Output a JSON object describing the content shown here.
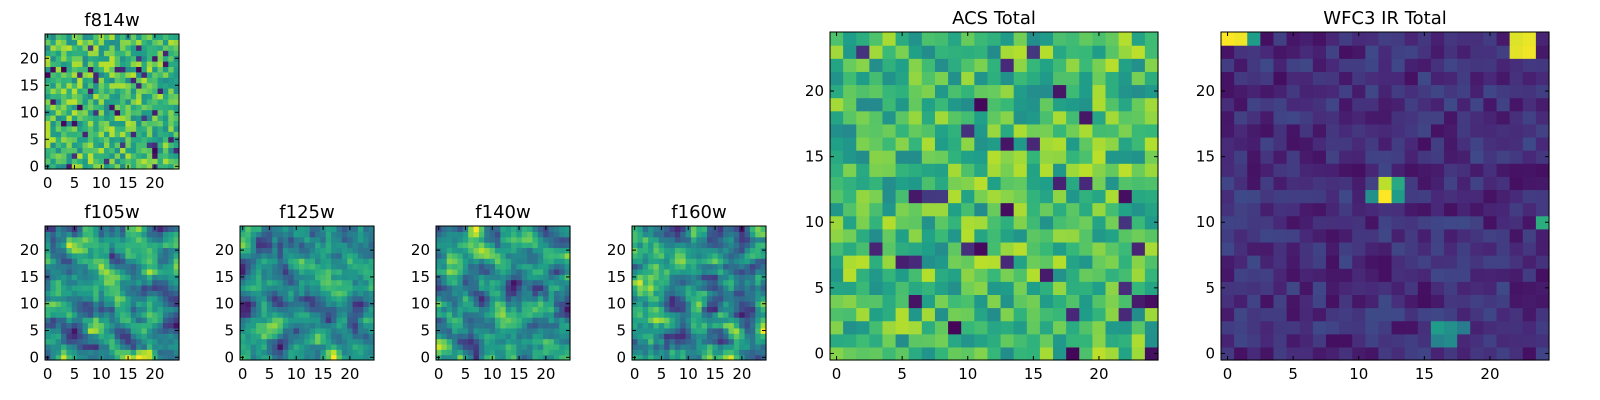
{
  "chart_data": [
    {
      "id": "f814w",
      "type": "heatmap",
      "title": "f814w",
      "xlabel": "",
      "ylabel": "",
      "grid_size": 25,
      "xlim": [
        -0.5,
        24.5
      ],
      "ylim": [
        -0.5,
        24.5
      ],
      "xticks": [
        0,
        5,
        10,
        15,
        20
      ],
      "yticks": [
        0,
        5,
        10,
        15,
        20
      ],
      "colormap": "viridis",
      "value_range": [
        0,
        1
      ],
      "pattern": "noisy",
      "seed": 814,
      "peaks": []
    },
    {
      "id": "f105w",
      "type": "heatmap",
      "title": "f105w",
      "xlabel": "",
      "ylabel": "",
      "grid_size": 25,
      "xlim": [
        -0.5,
        24.5
      ],
      "ylim": [
        -0.5,
        24.5
      ],
      "xticks": [
        0,
        5,
        10,
        15,
        20
      ],
      "yticks": [
        0,
        5,
        10,
        15,
        20
      ],
      "colormap": "viridis",
      "value_range": [
        0,
        1
      ],
      "pattern": "smooth",
      "seed": 105,
      "peaks": []
    },
    {
      "id": "f125w",
      "type": "heatmap",
      "title": "f125w",
      "xlabel": "",
      "ylabel": "",
      "grid_size": 25,
      "xlim": [
        -0.5,
        24.5
      ],
      "ylim": [
        -0.5,
        24.5
      ],
      "xticks": [
        0,
        5,
        10,
        15,
        20
      ],
      "yticks": [
        0,
        5,
        10,
        15,
        20
      ],
      "colormap": "viridis",
      "value_range": [
        0,
        1
      ],
      "pattern": "smooth",
      "seed": 125,
      "peaks": []
    },
    {
      "id": "f140w",
      "type": "heatmap",
      "title": "f140w",
      "xlabel": "",
      "ylabel": "",
      "grid_size": 25,
      "xlim": [
        -0.5,
        24.5
      ],
      "ylim": [
        -0.5,
        24.5
      ],
      "xticks": [
        0,
        5,
        10,
        15,
        20
      ],
      "yticks": [
        0,
        5,
        10,
        15,
        20
      ],
      "colormap": "viridis",
      "value_range": [
        0,
        1
      ],
      "pattern": "smooth",
      "seed": 140,
      "peaks": []
    },
    {
      "id": "f160w",
      "type": "heatmap",
      "title": "f160w",
      "xlabel": "",
      "ylabel": "",
      "grid_size": 25,
      "xlim": [
        -0.5,
        24.5
      ],
      "ylim": [
        -0.5,
        24.5
      ],
      "xticks": [
        0,
        5,
        10,
        15,
        20
      ],
      "yticks": [
        0,
        5,
        10,
        15,
        20
      ],
      "colormap": "viridis",
      "value_range": [
        0,
        1
      ],
      "pattern": "smooth",
      "seed": 160,
      "peaks": []
    },
    {
      "id": "acs-total",
      "type": "heatmap",
      "title": "ACS Total",
      "xlabel": "",
      "ylabel": "",
      "grid_size": 25,
      "xlim": [
        -0.5,
        24.5
      ],
      "ylim": [
        -0.5,
        24.5
      ],
      "xticks": [
        0,
        5,
        10,
        15,
        20
      ],
      "yticks": [
        0,
        5,
        10,
        15,
        20
      ],
      "colormap": "viridis",
      "value_range": [
        0,
        1
      ],
      "pattern": "noisy",
      "seed": 2024,
      "peaks": []
    },
    {
      "id": "wfc3-ir-total",
      "type": "heatmap",
      "title": "WFC3 IR Total",
      "xlabel": "",
      "ylabel": "",
      "grid_size": 25,
      "xlim": [
        -0.5,
        24.5
      ],
      "ylim": [
        -0.5,
        24.5
      ],
      "xticks": [
        0,
        5,
        10,
        15,
        20
      ],
      "yticks": [
        0,
        5,
        10,
        15,
        20
      ],
      "colormap": "viridis",
      "value_range": [
        0,
        1
      ],
      "pattern": "dark",
      "seed": 3,
      "peaks": [
        {
          "col": 0,
          "row": 24,
          "value": 1.0
        },
        {
          "col": 1,
          "row": 24,
          "value": 0.98
        },
        {
          "col": 2,
          "row": 24,
          "value": 0.55
        },
        {
          "col": 22,
          "row": 24,
          "value": 0.95
        },
        {
          "col": 23,
          "row": 24,
          "value": 0.97
        },
        {
          "col": 22,
          "row": 23,
          "value": 0.96
        },
        {
          "col": 23,
          "row": 23,
          "value": 0.98
        },
        {
          "col": 12,
          "row": 12,
          "value": 1.0
        },
        {
          "col": 12,
          "row": 13,
          "value": 0.9
        },
        {
          "col": 13,
          "row": 12,
          "value": 0.55
        },
        {
          "col": 13,
          "row": 13,
          "value": 0.6
        },
        {
          "col": 11,
          "row": 12,
          "value": 0.5
        },
        {
          "col": 24,
          "row": 10,
          "value": 0.62
        },
        {
          "col": 16,
          "row": 2,
          "value": 0.55
        },
        {
          "col": 17,
          "row": 2,
          "value": 0.5
        },
        {
          "col": 16,
          "row": 1,
          "value": 0.45
        },
        {
          "col": 17,
          "row": 1,
          "value": 0.48
        },
        {
          "col": 18,
          "row": 2,
          "value": 0.42
        }
      ]
    }
  ]
}
